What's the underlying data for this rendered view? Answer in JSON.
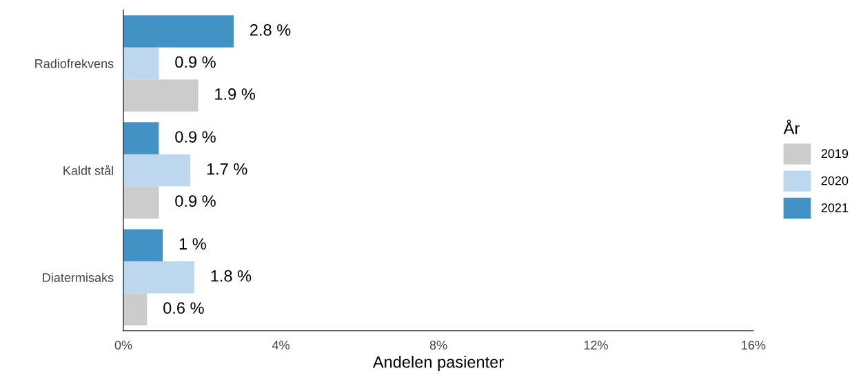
{
  "chart_data": {
    "type": "bar",
    "orientation": "horizontal",
    "xlabel": "Andelen pasienter",
    "legend_title": "År",
    "legend": "right",
    "grid": false,
    "categories": [
      "Radiofrekvens",
      "Kaldt stål",
      "Diatermisaks"
    ],
    "series": [
      {
        "name": "2019",
        "color": "#cccccc",
        "values": [
          1.9,
          0.9,
          0.6
        ],
        "value_labels": [
          "1.9 %",
          "0.9 %",
          "0.6 %"
        ]
      },
      {
        "name": "2020",
        "color": "#bdd7ee",
        "values": [
          0.9,
          1.7,
          1.8
        ],
        "value_labels": [
          "0.9 %",
          "1.7 %",
          "1.8 %"
        ]
      },
      {
        "name": "2021",
        "color": "#4292c6",
        "values": [
          2.8,
          0.9,
          1.0
        ],
        "value_labels": [
          "2.8 %",
          "0.9 %",
          "1 %"
        ]
      }
    ],
    "xlim": [
      0,
      16
    ],
    "xticks": [
      {
        "value": 0,
        "label": "0%"
      },
      {
        "value": 4,
        "label": "4%"
      },
      {
        "value": 8,
        "label": "8%"
      },
      {
        "value": 12,
        "label": "12%"
      },
      {
        "value": 16,
        "label": "16%"
      }
    ]
  }
}
